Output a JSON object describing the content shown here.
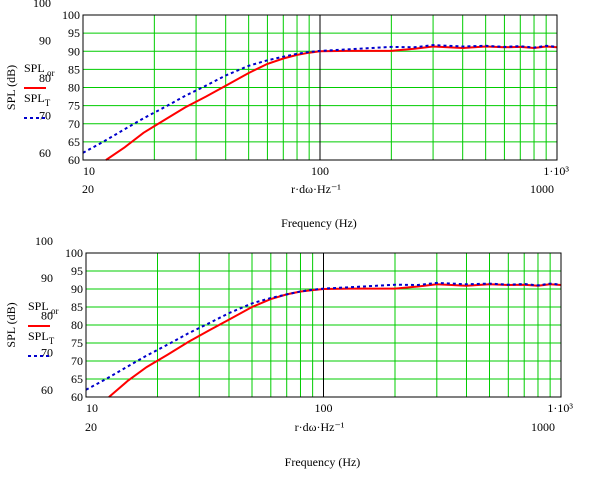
{
  "chart_data": [
    {
      "type": "line",
      "x_scale": "log",
      "xlim": [
        10,
        1000
      ],
      "ylim": [
        60,
        100
      ],
      "x_tick_values": [
        10,
        100,
        1000
      ],
      "x_tick_labels": [
        "10",
        "100",
        "1·10³"
      ],
      "x_secondary_labels": [
        "20",
        "1000"
      ],
      "y_ticks": [
        "60",
        "65",
        "70",
        "75",
        "80",
        "85",
        "90",
        "95",
        "100"
      ],
      "y_secondary_labels": [
        "100",
        "90",
        "80",
        "70",
        "60"
      ],
      "x_expression": "r·dω·Hz⁻¹",
      "xlabel": "Frequency (Hz)",
      "ylabel": "SPL (dB)",
      "grid": true,
      "grid_color": "#00cc00",
      "legend": "left",
      "series": [
        {
          "name": "SPL_or",
          "color": "#ff0000",
          "style": "solid",
          "x": [
            12.5,
            15,
            18,
            22,
            27,
            33,
            40,
            50,
            60,
            70,
            80,
            90,
            100,
            130,
            200,
            250,
            300,
            400,
            500,
            600,
            700,
            800,
            900,
            1000
          ],
          "y": [
            60,
            63.5,
            67.5,
            71,
            74.5,
            77.5,
            80.5,
            84,
            86.5,
            88,
            89,
            89.6,
            90,
            90.1,
            90.1,
            90.7,
            91.3,
            90.9,
            91.3,
            91.1,
            91.2,
            90.9,
            91.3,
            91.1
          ]
        },
        {
          "name": "SPL_T",
          "color": "#0000cc",
          "style": "dashed",
          "x": [
            10,
            12,
            15,
            18,
            22,
            27,
            33,
            40,
            50,
            60,
            70,
            80,
            90,
            100,
            130,
            200,
            250,
            300,
            400,
            500,
            600,
            700,
            800,
            900,
            1000
          ],
          "y": [
            62,
            64.8,
            68.5,
            71.5,
            74.5,
            77.7,
            80.5,
            83.3,
            86,
            87.5,
            88.5,
            89.3,
            89.8,
            90.1,
            90.5,
            91.2,
            91.1,
            91.7,
            91.3,
            91.5,
            91.2,
            91.4,
            91,
            91.5,
            91.2
          ]
        }
      ]
    },
    {
      "type": "line",
      "x_scale": "log",
      "xlim": [
        10,
        1000
      ],
      "ylim": [
        60,
        100
      ],
      "x_tick_values": [
        10,
        100,
        1000
      ],
      "x_tick_labels": [
        "10",
        "100",
        "1·10³"
      ],
      "x_secondary_labels": [
        "20",
        "1000"
      ],
      "y_ticks": [
        "60",
        "65",
        "70",
        "75",
        "80",
        "85",
        "90",
        "95",
        "100"
      ],
      "y_secondary_labels": [
        "100",
        "90",
        "80",
        "70",
        "60"
      ],
      "x_expression": "r·dω·Hz⁻¹",
      "xlabel": "Frequency (Hz)",
      "ylabel": "SPL (dB)",
      "grid": true,
      "grid_color": "#00cc00",
      "legend": "left",
      "series": [
        {
          "name": "SPL_or",
          "color": "#ff0000",
          "style": "solid",
          "x": [
            12.5,
            15,
            18,
            22,
            27,
            33,
            40,
            50,
            60,
            70,
            80,
            90,
            100,
            130,
            200,
            250,
            300,
            400,
            500,
            600,
            700,
            800,
            900,
            1000
          ],
          "y": [
            60,
            64.5,
            68.3,
            71.7,
            75.3,
            78.5,
            81.5,
            85,
            87.2,
            88.5,
            89.3,
            89.7,
            90,
            90.1,
            90.1,
            90.7,
            91.3,
            90.9,
            91.3,
            91.1,
            91.2,
            90.9,
            91.3,
            91.1
          ]
        },
        {
          "name": "SPL_T",
          "color": "#0000cc",
          "style": "dashed",
          "x": [
            10,
            12,
            15,
            18,
            22,
            27,
            33,
            40,
            50,
            60,
            70,
            80,
            90,
            100,
            130,
            200,
            250,
            300,
            400,
            500,
            600,
            700,
            800,
            900,
            1000
          ],
          "y": [
            62,
            64.8,
            68.5,
            71.5,
            74.5,
            77.7,
            80.5,
            83.3,
            86,
            87.5,
            88.5,
            89.3,
            89.8,
            90.1,
            90.5,
            91.2,
            91.1,
            91.7,
            91.3,
            91.5,
            91.2,
            91.4,
            91,
            91.5,
            91.2
          ]
        }
      ]
    }
  ]
}
